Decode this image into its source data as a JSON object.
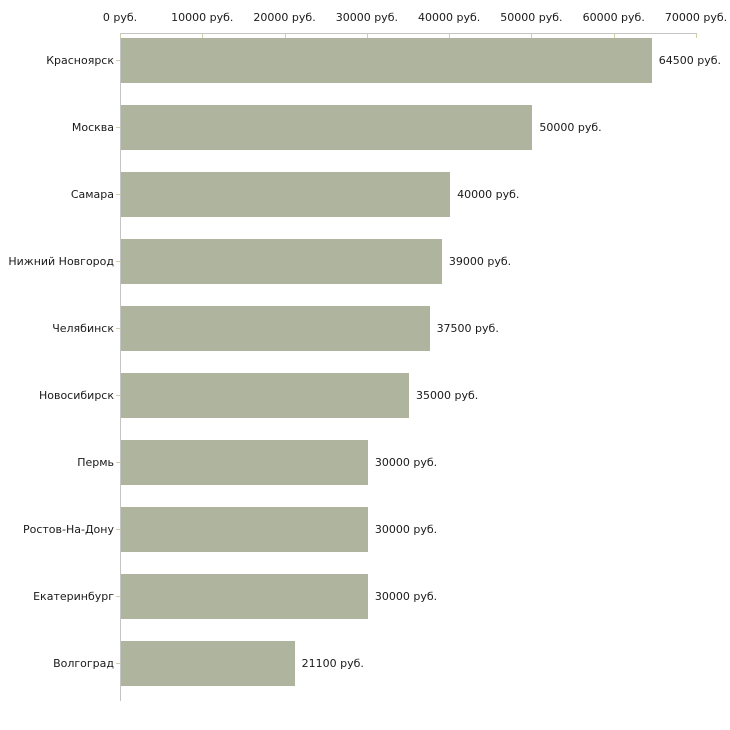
{
  "chart_data": {
    "type": "bar",
    "orientation": "horizontal",
    "title": "",
    "xlabel": "",
    "ylabel": "",
    "categories": [
      "Красноярск",
      "Москва",
      "Самара",
      "Нижний Новгород",
      "Челябинск",
      "Новосибирск",
      "Пермь",
      "Ростов-На-Дону",
      "Екатеринбург",
      "Волгоград"
    ],
    "values": [
      64500,
      50000,
      40000,
      39000,
      37500,
      35000,
      30000,
      30000,
      30000,
      21100
    ],
    "value_labels": [
      "64500 руб.",
      "50000 руб.",
      "40000 руб.",
      "39000 руб.",
      "37500 руб.",
      "35000 руб.",
      "30000 руб.",
      "30000 руб.",
      "30000 руб.",
      "21100 руб."
    ],
    "xlim": [
      0,
      70000
    ],
    "xticks": [
      0,
      10000,
      20000,
      30000,
      40000,
      50000,
      60000,
      70000
    ],
    "xtick_labels": [
      "0 руб.",
      "10000 руб.",
      "20000 руб.",
      "30000 руб.",
      "40000 руб.",
      "50000 руб.",
      "60000 руб.",
      "70000 руб."
    ],
    "grid": false,
    "legend": false,
    "axis_position": "top-left"
  },
  "colors": {
    "bar": "#aeb49d",
    "axis_line": "#c4c4c4",
    "tick": "#cfd1a4",
    "text": "#1a1a1a",
    "background": "#ffffff"
  }
}
